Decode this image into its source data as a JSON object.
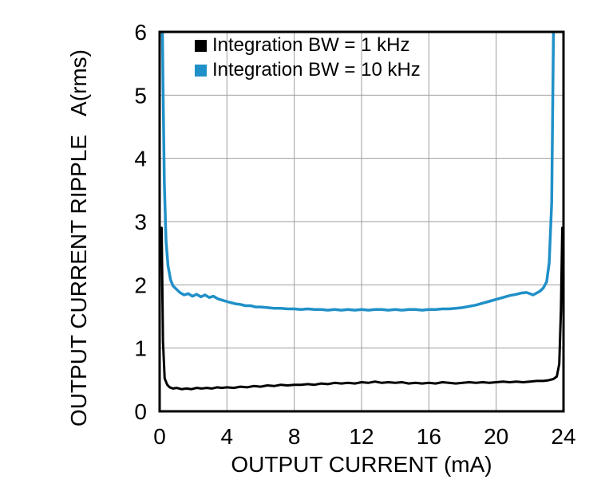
{
  "figure": {
    "background": "#ffffff",
    "frame_color": "#000000",
    "grid_color": "#9e9e9e"
  },
  "chart_data": {
    "type": "line",
    "title": "",
    "xlabel": "OUTPUT CURRENT (mA)",
    "ylabel": "OUTPUT CURRENT RIPPLE",
    "ylabel_units": "A(rms)",
    "xlim": [
      0,
      24
    ],
    "ylim": [
      0,
      6
    ],
    "xticks": [
      0,
      4,
      8,
      12,
      16,
      20,
      24
    ],
    "yticks": [
      0,
      1,
      2,
      3,
      4,
      5,
      6
    ],
    "grid": true,
    "legend_position": "top-left-inside",
    "series": [
      {
        "name": "Integration BW = 1 kHz",
        "color": "#000000",
        "width": 3,
        "points": [
          [
            0.12,
            2.9
          ],
          [
            0.2,
            1.1
          ],
          [
            0.3,
            0.52
          ],
          [
            0.45,
            0.42
          ],
          [
            0.6,
            0.38
          ],
          [
            0.8,
            0.36
          ],
          [
            1.0,
            0.37
          ],
          [
            1.3,
            0.35
          ],
          [
            1.6,
            0.36
          ],
          [
            1.9,
            0.35
          ],
          [
            2.2,
            0.37
          ],
          [
            2.5,
            0.36
          ],
          [
            2.8,
            0.37
          ],
          [
            3.1,
            0.36
          ],
          [
            3.4,
            0.38
          ],
          [
            3.7,
            0.37
          ],
          [
            4.0,
            0.38
          ],
          [
            4.4,
            0.37
          ],
          [
            4.8,
            0.39
          ],
          [
            5.2,
            0.38
          ],
          [
            5.6,
            0.4
          ],
          [
            6.0,
            0.39
          ],
          [
            6.4,
            0.41
          ],
          [
            6.8,
            0.4
          ],
          [
            7.2,
            0.42
          ],
          [
            7.6,
            0.41
          ],
          [
            8.0,
            0.42
          ],
          [
            8.4,
            0.42
          ],
          [
            8.8,
            0.43
          ],
          [
            9.2,
            0.42
          ],
          [
            9.6,
            0.44
          ],
          [
            10.0,
            0.43
          ],
          [
            10.4,
            0.45
          ],
          [
            10.8,
            0.44
          ],
          [
            11.2,
            0.45
          ],
          [
            11.6,
            0.44
          ],
          [
            12.0,
            0.46
          ],
          [
            12.4,
            0.45
          ],
          [
            12.8,
            0.47
          ],
          [
            13.2,
            0.45
          ],
          [
            13.6,
            0.46
          ],
          [
            14.0,
            0.45
          ],
          [
            14.4,
            0.46
          ],
          [
            14.8,
            0.44
          ],
          [
            15.2,
            0.45
          ],
          [
            15.6,
            0.44
          ],
          [
            16.0,
            0.45
          ],
          [
            16.4,
            0.44
          ],
          [
            16.8,
            0.46
          ],
          [
            17.2,
            0.45
          ],
          [
            17.6,
            0.44
          ],
          [
            18.0,
            0.45
          ],
          [
            18.4,
            0.46
          ],
          [
            18.8,
            0.45
          ],
          [
            19.2,
            0.46
          ],
          [
            19.6,
            0.45
          ],
          [
            20.0,
            0.46
          ],
          [
            20.4,
            0.47
          ],
          [
            20.8,
            0.46
          ],
          [
            21.2,
            0.47
          ],
          [
            21.6,
            0.46
          ],
          [
            22.0,
            0.47
          ],
          [
            22.4,
            0.48
          ],
          [
            22.8,
            0.48
          ],
          [
            23.1,
            0.49
          ],
          [
            23.4,
            0.51
          ],
          [
            23.6,
            0.55
          ],
          [
            23.75,
            0.75
          ],
          [
            23.85,
            1.6
          ],
          [
            23.93,
            2.9
          ]
        ]
      },
      {
        "name": "Integration BW = 10 kHz",
        "color": "#2090c8",
        "width": 3.5,
        "points": [
          [
            0.15,
            6.4
          ],
          [
            0.2,
            5.2
          ],
          [
            0.28,
            3.6
          ],
          [
            0.38,
            2.7
          ],
          [
            0.5,
            2.3
          ],
          [
            0.65,
            2.08
          ],
          [
            0.8,
            1.98
          ],
          [
            1.0,
            1.93
          ],
          [
            1.2,
            1.88
          ],
          [
            1.45,
            1.84
          ],
          [
            1.7,
            1.86
          ],
          [
            1.95,
            1.82
          ],
          [
            2.2,
            1.85
          ],
          [
            2.45,
            1.81
          ],
          [
            2.7,
            1.84
          ],
          [
            2.95,
            1.8
          ],
          [
            3.2,
            1.82
          ],
          [
            3.45,
            1.78
          ],
          [
            3.7,
            1.76
          ],
          [
            3.95,
            1.74
          ],
          [
            4.2,
            1.72
          ],
          [
            4.5,
            1.7
          ],
          [
            4.8,
            1.69
          ],
          [
            5.1,
            1.67
          ],
          [
            5.4,
            1.67
          ],
          [
            5.7,
            1.65
          ],
          [
            6.0,
            1.65
          ],
          [
            6.4,
            1.64
          ],
          [
            6.8,
            1.63
          ],
          [
            7.2,
            1.63
          ],
          [
            7.6,
            1.62
          ],
          [
            8.0,
            1.62
          ],
          [
            8.4,
            1.61
          ],
          [
            8.8,
            1.62
          ],
          [
            9.2,
            1.61
          ],
          [
            9.6,
            1.61
          ],
          [
            10.0,
            1.6
          ],
          [
            10.4,
            1.61
          ],
          [
            10.8,
            1.6
          ],
          [
            11.2,
            1.61
          ],
          [
            11.6,
            1.6
          ],
          [
            12.0,
            1.61
          ],
          [
            12.4,
            1.6
          ],
          [
            12.8,
            1.61
          ],
          [
            13.2,
            1.61
          ],
          [
            13.6,
            1.6
          ],
          [
            14.0,
            1.61
          ],
          [
            14.4,
            1.6
          ],
          [
            14.8,
            1.61
          ],
          [
            15.2,
            1.61
          ],
          [
            15.6,
            1.6
          ],
          [
            16.0,
            1.61
          ],
          [
            16.4,
            1.61
          ],
          [
            16.8,
            1.62
          ],
          [
            17.2,
            1.62
          ],
          [
            17.6,
            1.63
          ],
          [
            18.0,
            1.64
          ],
          [
            18.4,
            1.66
          ],
          [
            18.8,
            1.68
          ],
          [
            19.2,
            1.71
          ],
          [
            19.6,
            1.74
          ],
          [
            20.0,
            1.77
          ],
          [
            20.4,
            1.8
          ],
          [
            20.8,
            1.83
          ],
          [
            21.2,
            1.85
          ],
          [
            21.5,
            1.87
          ],
          [
            21.8,
            1.88
          ],
          [
            22.0,
            1.86
          ],
          [
            22.2,
            1.84
          ],
          [
            22.4,
            1.87
          ],
          [
            22.6,
            1.9
          ],
          [
            22.8,
            1.95
          ],
          [
            23.0,
            2.05
          ],
          [
            23.15,
            2.35
          ],
          [
            23.3,
            3.3
          ],
          [
            23.42,
            6.4
          ]
        ]
      }
    ]
  }
}
